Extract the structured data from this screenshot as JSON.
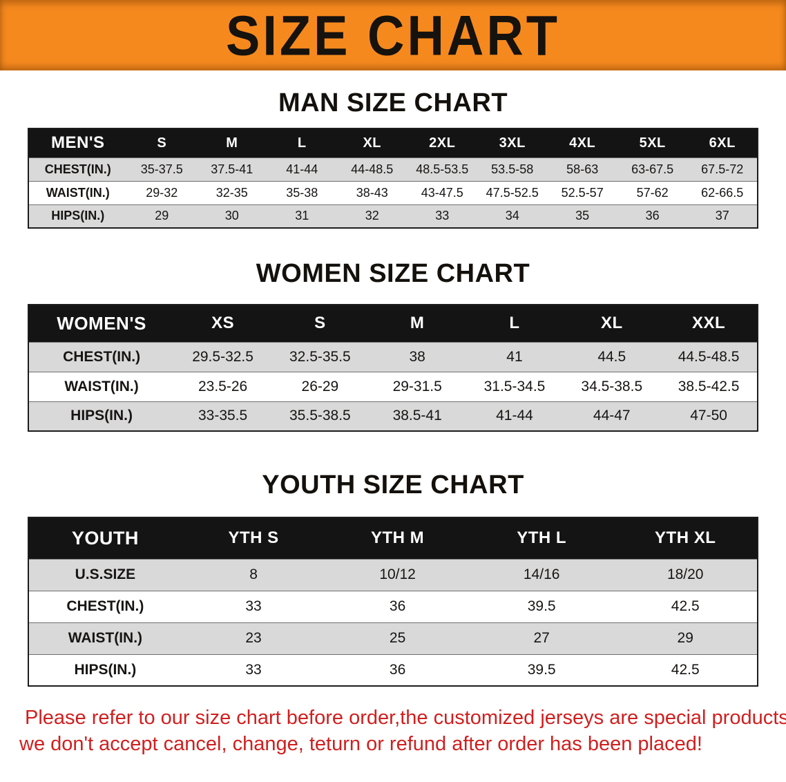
{
  "banner": {
    "title": "SIZE CHART"
  },
  "sections": [
    {
      "id": "men",
      "heading": "MAN SIZE CHART",
      "table": {
        "header": [
          "MEN'S",
          "S",
          "M",
          "L",
          "XL",
          "2XL",
          "3XL",
          "4XL",
          "5XL",
          "6XL"
        ],
        "rows": [
          {
            "label": "CHEST(IN.)",
            "values": [
              "35-37.5",
              "37.5-41",
              "41-44",
              "44-48.5",
              "48.5-53.5",
              "53.5-58",
              "58-63",
              "63-67.5",
              "67.5-72"
            ]
          },
          {
            "label": "WAIST(IN.)",
            "values": [
              "29-32",
              "32-35",
              "35-38",
              "38-43",
              "43-47.5",
              "47.5-52.5",
              "52.5-57",
              "57-62",
              "62-66.5"
            ]
          },
          {
            "label": "HIPS(IN.)",
            "values": [
              "29",
              "30",
              "31",
              "32",
              "33",
              "34",
              "35",
              "36",
              "37"
            ]
          }
        ]
      }
    },
    {
      "id": "women",
      "heading": "WOMEN SIZE CHART",
      "table": {
        "header": [
          "WOMEN'S",
          "XS",
          "S",
          "M",
          "L",
          "XL",
          "XXL"
        ],
        "rows": [
          {
            "label": "CHEST(IN.)",
            "values": [
              "29.5-32.5",
              "32.5-35.5",
              "38",
              "41",
              "44.5",
              "44.5-48.5"
            ]
          },
          {
            "label": "WAIST(IN.)",
            "values": [
              "23.5-26",
              "26-29",
              "29-31.5",
              "31.5-34.5",
              "34.5-38.5",
              "38.5-42.5"
            ]
          },
          {
            "label": "HIPS(IN.)",
            "values": [
              "33-35.5",
              "35.5-38.5",
              "38.5-41",
              "41-44",
              "44-47",
              "47-50"
            ]
          }
        ]
      }
    },
    {
      "id": "youth",
      "heading": "YOUTH SIZE CHART",
      "table": {
        "header": [
          "YOUTH",
          "YTH S",
          "YTH M",
          "YTH L",
          "YTH XL"
        ],
        "rows": [
          {
            "label": "U.S.SIZE",
            "values": [
              "8",
              "10/12",
              "14/16",
              "18/20"
            ]
          },
          {
            "label": "CHEST(IN.)",
            "values": [
              "33",
              "36",
              "39.5",
              "42.5"
            ]
          },
          {
            "label": "WAIST(IN.)",
            "values": [
              "23",
              "25",
              "27",
              "29"
            ]
          },
          {
            "label": "HIPS(IN.)",
            "values": [
              "33",
              "36",
              "39.5",
              "42.5"
            ]
          }
        ]
      }
    }
  ],
  "disclaimer": {
    "line1": "Please refer to our size chart before order,the customized jerseys are special products,",
    "line2": "we don't accept cancel, change, teturn or refund after order has been placed!"
  },
  "colors": {
    "banner_bg": "#f6891e",
    "table_header_bg": "#141414",
    "shaded_row": "#d9d9d9",
    "disclaimer_text": "#d01f1f"
  }
}
